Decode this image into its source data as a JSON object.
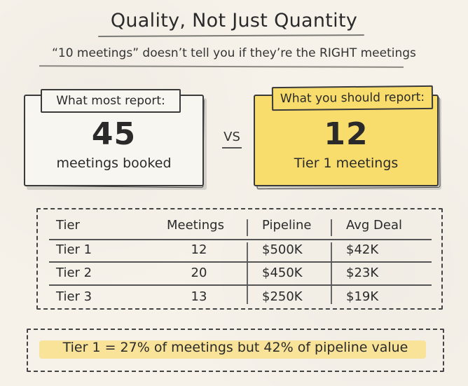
{
  "header": {
    "title": "Quality, Not Just Quantity",
    "subtitle": "“10 meetings” doesn’t tell you if they’re the RIGHT meetings"
  },
  "comparison": {
    "left": {
      "tag": "What most report:",
      "value": "45",
      "label": "meetings booked"
    },
    "vs": "VS",
    "right": {
      "tag": "What you should report:",
      "value": "12",
      "label": "Tier 1 meetings"
    }
  },
  "table": {
    "headers": [
      "Tier",
      "Meetings",
      "Pipeline",
      "Avg Deal"
    ],
    "rows": [
      [
        "Tier 1",
        "12",
        "$500K",
        "$42K"
      ],
      [
        "Tier 2",
        "20",
        "$450K",
        "$23K"
      ],
      [
        "Tier 3",
        "13",
        "$250K",
        "$19K"
      ]
    ]
  },
  "callout": {
    "text": "Tier 1 = 27% of meetings but 42% of pipeline value"
  },
  "colors": {
    "highlight_yellow": "#f9dd6c",
    "paper": "#f6f2ea",
    "ink": "#2a2a2a"
  }
}
